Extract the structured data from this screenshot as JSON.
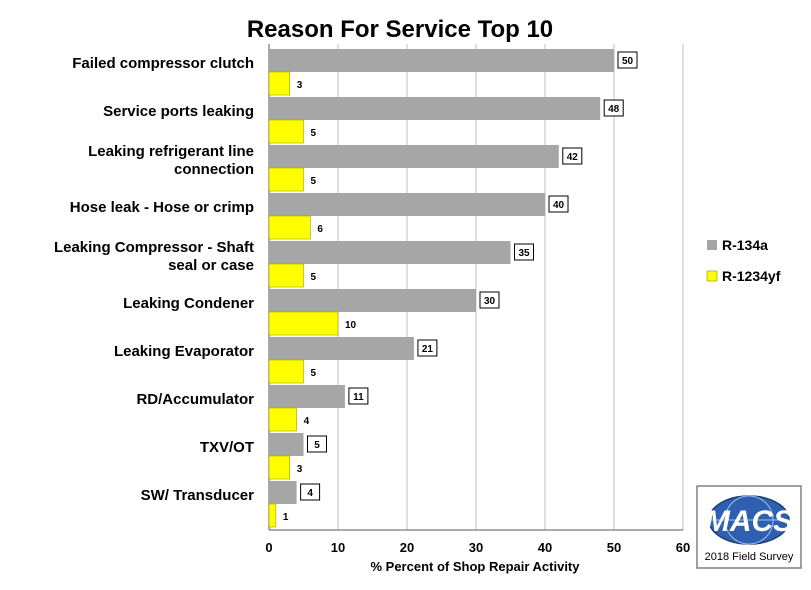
{
  "chart_data": {
    "type": "bar",
    "orientation": "horizontal",
    "title": "Reason For Service Top 10",
    "xlabel": "%   Percent of  Shop Repair Activity",
    "xlim": [
      0,
      60
    ],
    "xticks": [
      0,
      10,
      20,
      30,
      40,
      50,
      60
    ],
    "grid": true,
    "legend_position": "right",
    "categories": [
      [
        "Failed compressor clutch"
      ],
      [
        "Service ports leaking"
      ],
      [
        "Leaking refrigerant line",
        "connection"
      ],
      [
        "Hose leak  - Hose or crimp"
      ],
      [
        "Leaking Compressor - Shaft",
        "seal or case"
      ],
      [
        "Leaking Condener"
      ],
      [
        "Leaking Evaporator"
      ],
      [
        "RD/Accumulator"
      ],
      [
        "TXV/OT"
      ],
      [
        "SW/ Transducer"
      ]
    ],
    "series": [
      {
        "name": "R-134a",
        "color": "#a6a6a6",
        "values": [
          50,
          48,
          42,
          40,
          35,
          30,
          21,
          11,
          5,
          4
        ]
      },
      {
        "name": "R-1234yf",
        "color": "#ffff00",
        "values": [
          3,
          5,
          5,
          6,
          5,
          10,
          5,
          4,
          3,
          1
        ]
      }
    ]
  },
  "badge": {
    "logo_text": "MACS",
    "caption": "2018 Field Survey"
  }
}
